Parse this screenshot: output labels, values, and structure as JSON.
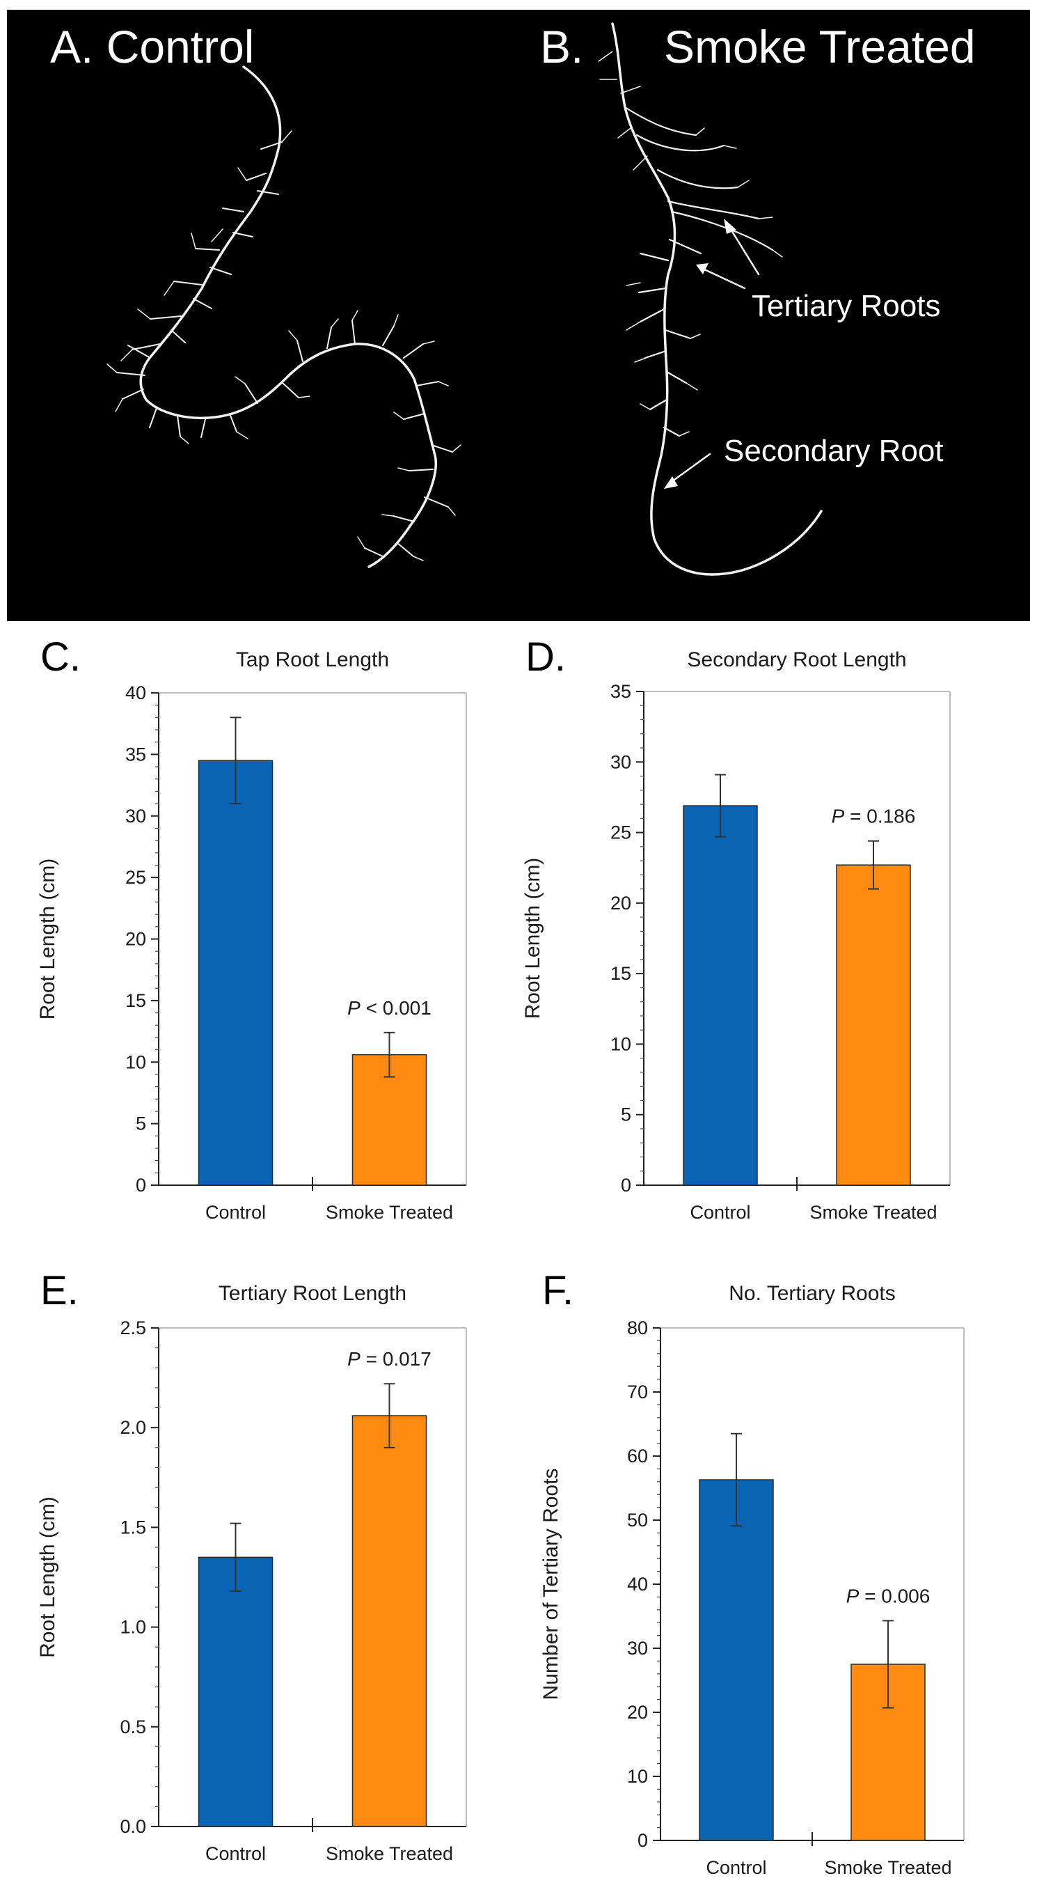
{
  "photo": {
    "panel_a_label": "A. Control",
    "panel_b_label": "B.",
    "panel_b_title": "Smoke Treated",
    "annotation_tertiary": "Tertiary Roots",
    "annotation_secondary": "Secondary Root"
  },
  "colors": {
    "control": "#0b63b3",
    "smoke": "#ff8a12"
  },
  "chart_data": [
    {
      "id": "chart-c",
      "panel": "C.",
      "type": "bar",
      "title": "Tap Root Length",
      "ylabel": "Root Length (cm)",
      "categories": [
        "Control",
        "Smoke Treated"
      ],
      "values": [
        34.5,
        10.6
      ],
      "errors": [
        3.5,
        1.8
      ],
      "ylim": [
        0,
        40
      ],
      "yticks": [
        0,
        5,
        10,
        15,
        20,
        25,
        30,
        35,
        40
      ],
      "tick_decimals": 0,
      "annotation": {
        "category_index": 1,
        "italic": "P",
        "rest": " < 0.001"
      }
    },
    {
      "id": "chart-d",
      "panel": "D.",
      "type": "bar",
      "title": "Secondary Root Length",
      "ylabel": "Root Length (cm)",
      "categories": [
        "Control",
        "Smoke Treated"
      ],
      "values": [
        26.9,
        22.7
      ],
      "errors": [
        2.2,
        1.7
      ],
      "ylim": [
        0,
        35
      ],
      "yticks": [
        0,
        5,
        10,
        15,
        20,
        25,
        30,
        35
      ],
      "tick_decimals": 0,
      "annotation": {
        "category_index": 1,
        "italic": "P",
        "rest": " = 0.186"
      }
    },
    {
      "id": "chart-e",
      "panel": "E.",
      "type": "bar",
      "title": "Tertiary Root Length",
      "ylabel": "Root Length (cm)",
      "categories": [
        "Control",
        "Smoke Treated"
      ],
      "values": [
        1.35,
        2.06
      ],
      "errors": [
        0.17,
        0.16
      ],
      "ylim": [
        0,
        2.5
      ],
      "yticks": [
        0,
        0.5,
        1.0,
        1.5,
        2.0,
        2.5
      ],
      "tick_decimals": 1,
      "annotation": {
        "category_index": 1,
        "italic": "P",
        "rest": " = 0.017"
      }
    },
    {
      "id": "chart-f",
      "panel": "F.",
      "type": "bar",
      "title": "No. Tertiary Roots",
      "ylabel": "Number of Tertiary Roots",
      "categories": [
        "Control",
        "Smoke Treated"
      ],
      "values": [
        56.3,
        27.5
      ],
      "errors": [
        7.2,
        6.8
      ],
      "ylim": [
        0,
        80
      ],
      "yticks": [
        0,
        10,
        20,
        30,
        40,
        50,
        60,
        70,
        80
      ],
      "tick_decimals": 0,
      "annotation": {
        "category_index": 1,
        "italic": "P",
        "rest": " = 0.006"
      }
    }
  ]
}
